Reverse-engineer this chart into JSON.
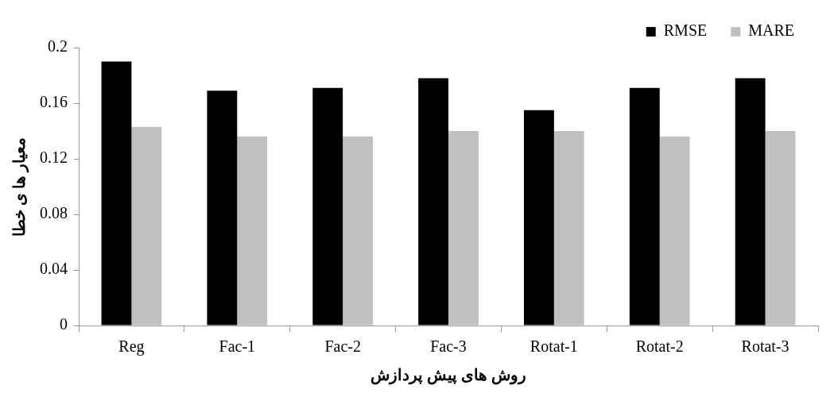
{
  "chart_data": {
    "type": "bar",
    "xlabel": "روش های پیش پردازش",
    "ylabel": "معیار ها ی خطا",
    "categories": [
      "Reg",
      "Fac-1",
      "Fac-2",
      "Fac-3",
      "Rotat-1",
      "Rotat-2",
      "Rotat-3"
    ],
    "series": [
      {
        "name": "RMSE",
        "color": "#000000",
        "values": [
          0.19,
          0.169,
          0.171,
          0.178,
          0.155,
          0.171,
          0.178
        ]
      },
      {
        "name": "MARE",
        "color": "#c0c0c0",
        "values": [
          0.143,
          0.136,
          0.136,
          0.14,
          0.14,
          0.136,
          0.14
        ]
      }
    ],
    "ylim": [
      0,
      0.2
    ],
    "yticks": [
      0,
      0.04,
      0.08,
      0.12,
      0.16,
      0.2
    ],
    "grid": false,
    "legend": "top right"
  }
}
